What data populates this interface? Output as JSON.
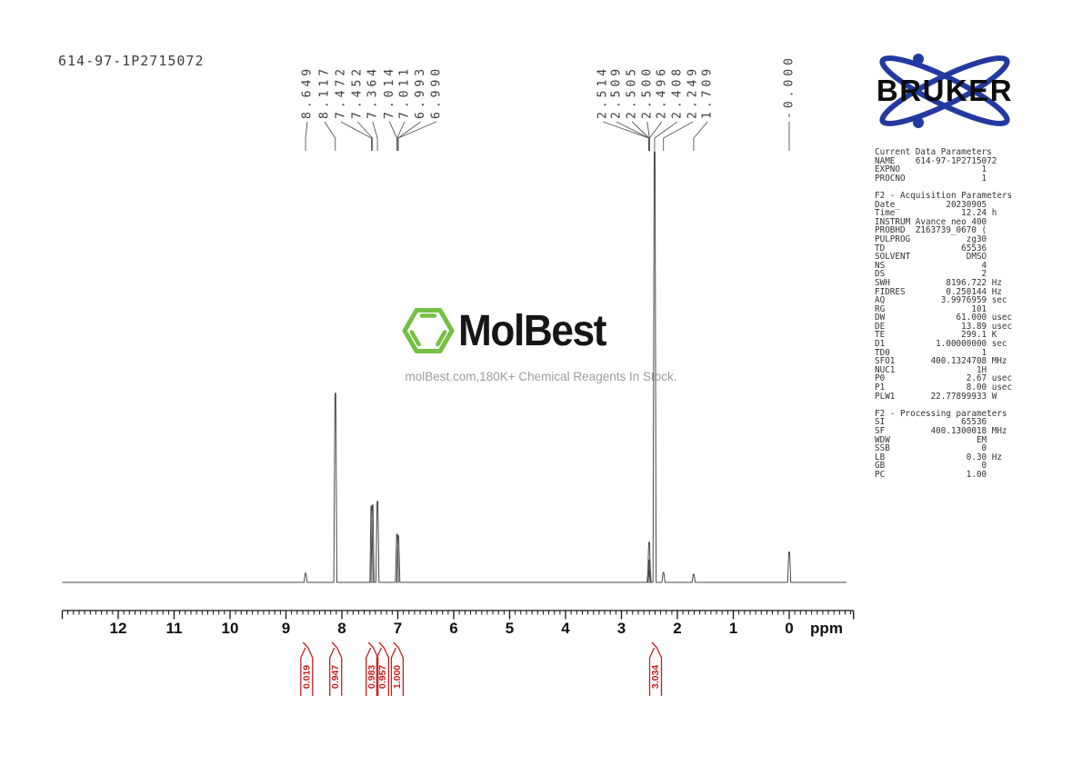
{
  "title": "614-97-1P2715072",
  "watermark": {
    "brand": "MolBest",
    "tagline": "molBest.com,180K+ Chemical Reagents In Stock."
  },
  "bruker": {
    "wordmark": "BRUKER"
  },
  "chart_data": {
    "type": "line",
    "title": "1H NMR spectrum",
    "xlabel": "ppm",
    "x_unit": "ppm",
    "x_range": [
      13.0,
      -1.15
    ],
    "x_ticks": [
      12,
      11,
      10,
      9,
      8,
      7,
      6,
      5,
      4,
      3,
      2,
      1,
      0
    ],
    "grid": false,
    "y_axis": "none (intensity, arbitrary units)",
    "peak_labels": [
      {
        "text": "8.649",
        "ppm": 8.649,
        "label_ppm": 8.62
      },
      {
        "text": "8.117",
        "ppm": 8.117,
        "label_ppm": 8.31
      },
      {
        "text": "7.472",
        "ppm": 7.472,
        "label_ppm": 8.02
      },
      {
        "text": "7.452",
        "ppm": 7.452,
        "label_ppm": 7.72
      },
      {
        "text": "7.364",
        "ppm": 7.364,
        "label_ppm": 7.45
      },
      {
        "text": "7.014",
        "ppm": 7.014,
        "label_ppm": 7.15
      },
      {
        "text": "7.011",
        "ppm": 7.011,
        "label_ppm": 6.88
      },
      {
        "text": "6.993",
        "ppm": 6.993,
        "label_ppm": 6.59
      },
      {
        "text": "6.990",
        "ppm": 6.99,
        "label_ppm": 6.31
      },
      {
        "text": "2.514",
        "ppm": 2.514,
        "label_ppm": 3.33
      },
      {
        "text": "2.509",
        "ppm": 2.509,
        "label_ppm": 3.09
      },
      {
        "text": "2.505",
        "ppm": 2.505,
        "label_ppm": 2.81
      },
      {
        "text": "2.500",
        "ppm": 2.5,
        "label_ppm": 2.54
      },
      {
        "text": "2.496",
        "ppm": 2.496,
        "label_ppm": 2.28
      },
      {
        "text": "2.408",
        "ppm": 2.408,
        "label_ppm": 2.0
      },
      {
        "text": "2.249",
        "ppm": 2.249,
        "label_ppm": 1.72
      },
      {
        "text": "1.709",
        "ppm": 1.709,
        "label_ppm": 1.46
      },
      {
        "text": "-0.000",
        "ppm": 0.0,
        "label_ppm": 0.0
      }
    ],
    "peaks": [
      {
        "ppm": 8.649,
        "h": 0.021
      },
      {
        "ppm": 8.117,
        "h": 0.439
      },
      {
        "ppm": 7.472,
        "h": 0.177
      },
      {
        "ppm": 7.452,
        "h": 0.18
      },
      {
        "ppm": 7.364,
        "h": 0.188
      },
      {
        "ppm": 7.014,
        "h": 0.112
      },
      {
        "ppm": 6.991,
        "h": 0.108
      },
      {
        "ppm": 2.514,
        "h": 0.03
      },
      {
        "ppm": 2.509,
        "h": 0.052
      },
      {
        "ppm": 2.505,
        "h": 0.093
      },
      {
        "ppm": 2.5,
        "h": 0.052
      },
      {
        "ppm": 2.496,
        "h": 0.03
      },
      {
        "ppm": 2.408,
        "h": 1.0
      },
      {
        "ppm": 2.249,
        "h": 0.023
      },
      {
        "ppm": 1.709,
        "h": 0.019
      },
      {
        "ppm": 0.0,
        "h": 0.07
      }
    ],
    "integrals": [
      {
        "value": "0.019",
        "ppm": 8.63
      },
      {
        "value": "0.947",
        "ppm": 8.11
      },
      {
        "value": "0.983",
        "ppm": 7.46
      },
      {
        "value": "0.957",
        "ppm": 7.27
      },
      {
        "value": "1.000",
        "ppm": 7.01
      },
      {
        "value": "3.034",
        "ppm": 2.39
      }
    ],
    "accent_color": "#c81e1e",
    "trace_color": "#4a4a4a"
  },
  "parameters": {
    "sections": [
      {
        "header": "Current Data Parameters",
        "rows": [
          [
            "NAME",
            "614-97-1P2715072",
            ""
          ],
          [
            "EXPNO",
            "1",
            ""
          ],
          [
            "PROCNO",
            "1",
            ""
          ]
        ]
      },
      {
        "header": "F2 - Acquisition Parameters",
        "rows": [
          [
            "Date_",
            "20230905",
            ""
          ],
          [
            "Time",
            "12.24",
            "h"
          ],
          [
            "INSTRUM",
            "Avance neo 400",
            ""
          ],
          [
            "PROBHD",
            "Z163739_0670 (",
            ""
          ],
          [
            "PULPROG",
            "zg30",
            ""
          ],
          [
            "TD",
            "65536",
            ""
          ],
          [
            "SOLVENT",
            "DMSO",
            ""
          ],
          [
            "NS",
            "4",
            ""
          ],
          [
            "DS",
            "2",
            ""
          ],
          [
            "SWH",
            "8196.722",
            "Hz"
          ],
          [
            "FIDRES",
            "0.250144",
            "Hz"
          ],
          [
            "AQ",
            "3.9976959",
            "sec"
          ],
          [
            "RG",
            "101",
            ""
          ],
          [
            "DW",
            "61.000",
            "usec"
          ],
          [
            "DE",
            "13.89",
            "usec"
          ],
          [
            "TE",
            "299.1",
            "K"
          ],
          [
            "D1",
            "1.00000000",
            "sec"
          ],
          [
            "TD0",
            "1",
            ""
          ],
          [
            "SFO1",
            "400.1324708",
            "MHz"
          ],
          [
            "NUC1",
            "1H",
            ""
          ],
          [
            "P0",
            "2.67",
            "usec"
          ],
          [
            "P1",
            "8.00",
            "usec"
          ],
          [
            "PLW1",
            "22.77899933",
            "W"
          ]
        ]
      },
      {
        "header": "F2 - Processing parameters",
        "rows": [
          [
            "SI",
            "65536",
            ""
          ],
          [
            "SF",
            "400.1300018",
            "MHz"
          ],
          [
            "WDW",
            "EM",
            ""
          ],
          [
            "SSB",
            "0",
            ""
          ],
          [
            "LB",
            "0.30",
            "Hz"
          ],
          [
            "GB",
            "0",
            ""
          ],
          [
            "PC",
            "1.00",
            ""
          ]
        ]
      }
    ]
  }
}
